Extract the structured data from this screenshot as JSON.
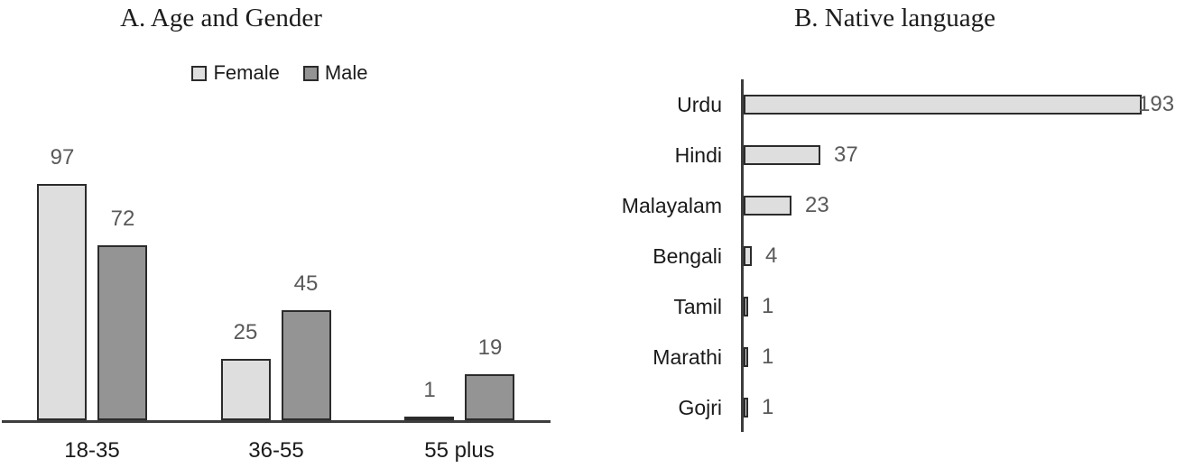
{
  "colors": {
    "female_fill": "#dedede",
    "male_fill": "#949494",
    "bar_fill_light": "#dedede",
    "bar_border": "#2b2b2b",
    "axis": "#3d3d3d",
    "value_label": "#595959",
    "text": "#1c1c1c",
    "background": "#ffffff"
  },
  "chart_data": [
    {
      "type": "bar",
      "panel": "A",
      "title": "A. Age and Gender",
      "orientation": "vertical",
      "categories": [
        "18-35",
        "36-55",
        "55 plus"
      ],
      "series": [
        {
          "name": "Female",
          "values": [
            97,
            25,
            1
          ]
        },
        {
          "name": "Male",
          "values": [
            72,
            45,
            19
          ]
        }
      ],
      "legend_position": "top",
      "legend_labels": [
        "Female",
        "Male"
      ],
      "data_labels": true,
      "ylim": [
        0,
        100
      ],
      "grid": false,
      "axes_shown": "x-baseline-only"
    },
    {
      "type": "bar",
      "panel": "B",
      "title": "B. Native language",
      "orientation": "horizontal",
      "categories": [
        "Urdu",
        "Hindi",
        "Malayalam",
        "Bengali",
        "Tamil",
        "Marathi",
        "Gojri"
      ],
      "values": [
        193,
        37,
        23,
        4,
        1,
        1,
        1
      ],
      "data_labels": true,
      "xlim": [
        0,
        200
      ],
      "grid": false,
      "axes_shown": "y-baseline-only"
    }
  ]
}
